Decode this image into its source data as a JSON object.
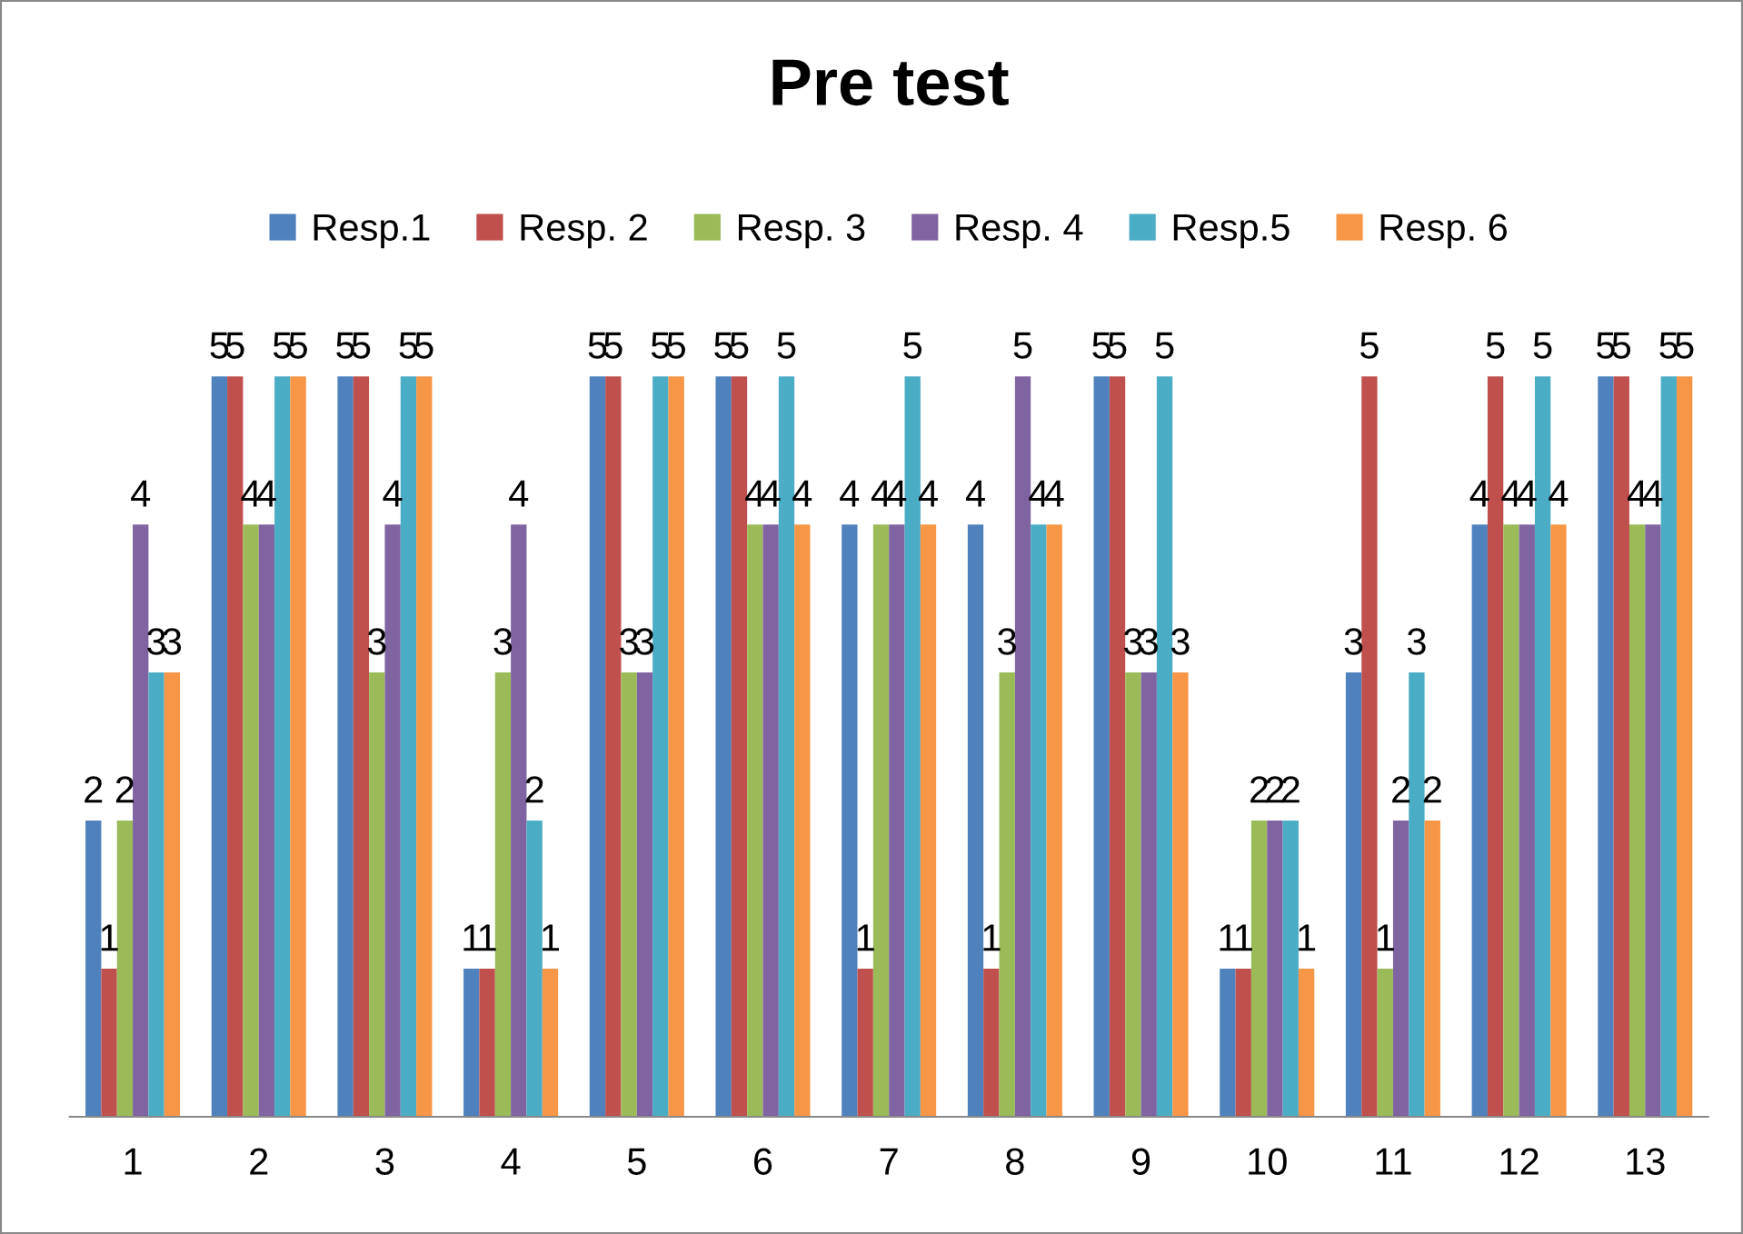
{
  "chart_data": {
    "type": "bar",
    "title": "Pre test",
    "categories": [
      "1",
      "2",
      "3",
      "4",
      "5",
      "6",
      "7",
      "8",
      "9",
      "10",
      "11",
      "12",
      "13"
    ],
    "series": [
      {
        "name": "Resp.1",
        "color": "#4f81bd",
        "values": [
          2,
          5,
          5,
          1,
          5,
          5,
          4,
          4,
          5,
          1,
          3,
          4,
          5
        ]
      },
      {
        "name": "Resp. 2",
        "color": "#c0504d",
        "values": [
          1,
          5,
          5,
          1,
          5,
          5,
          1,
          1,
          5,
          1,
          5,
          5,
          5
        ]
      },
      {
        "name": "Resp. 3",
        "color": "#9bbb59",
        "values": [
          2,
          4,
          3,
          3,
          3,
          4,
          4,
          3,
          3,
          2,
          1,
          4,
          4
        ]
      },
      {
        "name": "Resp. 4",
        "color": "#8064a2",
        "values": [
          4,
          4,
          4,
          4,
          3,
          4,
          4,
          5,
          3,
          2,
          2,
          4,
          4
        ]
      },
      {
        "name": "Resp.5",
        "color": "#4bacc6",
        "values": [
          3,
          5,
          5,
          2,
          5,
          5,
          5,
          4,
          5,
          2,
          3,
          5,
          5
        ]
      },
      {
        "name": "Resp. 6",
        "color": "#f79646",
        "values": [
          3,
          5,
          5,
          1,
          5,
          4,
          4,
          4,
          3,
          1,
          2,
          4,
          5
        ]
      }
    ],
    "data_labels": true,
    "legend": "top",
    "grid": false
  }
}
